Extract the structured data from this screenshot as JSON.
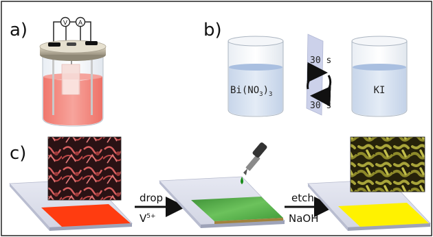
{
  "panels": {
    "a": {
      "label": "a)",
      "meter_v": "V",
      "meter_a": "A"
    },
    "b": {
      "label": "b)",
      "beaker_left": {
        "formula": "Bi(NO",
        "sub": "3",
        "close": ")",
        "sub2": "3"
      },
      "beaker_right": "KI",
      "time_top": "30 s",
      "time_bottom": "30 s"
    },
    "c": {
      "label": "c)",
      "step1": {
        "top": "drop",
        "bottom_base": "V",
        "bottom_sup": "5+"
      },
      "step2": {
        "top": "etch",
        "bottom": "NaOH"
      }
    }
  },
  "colors": {
    "frame": "#222222",
    "solution_red": "#f08a80",
    "solution_blue": "#b9cde8",
    "film_red": "#ff3c10",
    "film_green": "#4caf45",
    "film_yellow": "#fff200",
    "sem_red": "#b84a4a",
    "sem_yellow": "#8c8a2c"
  }
}
